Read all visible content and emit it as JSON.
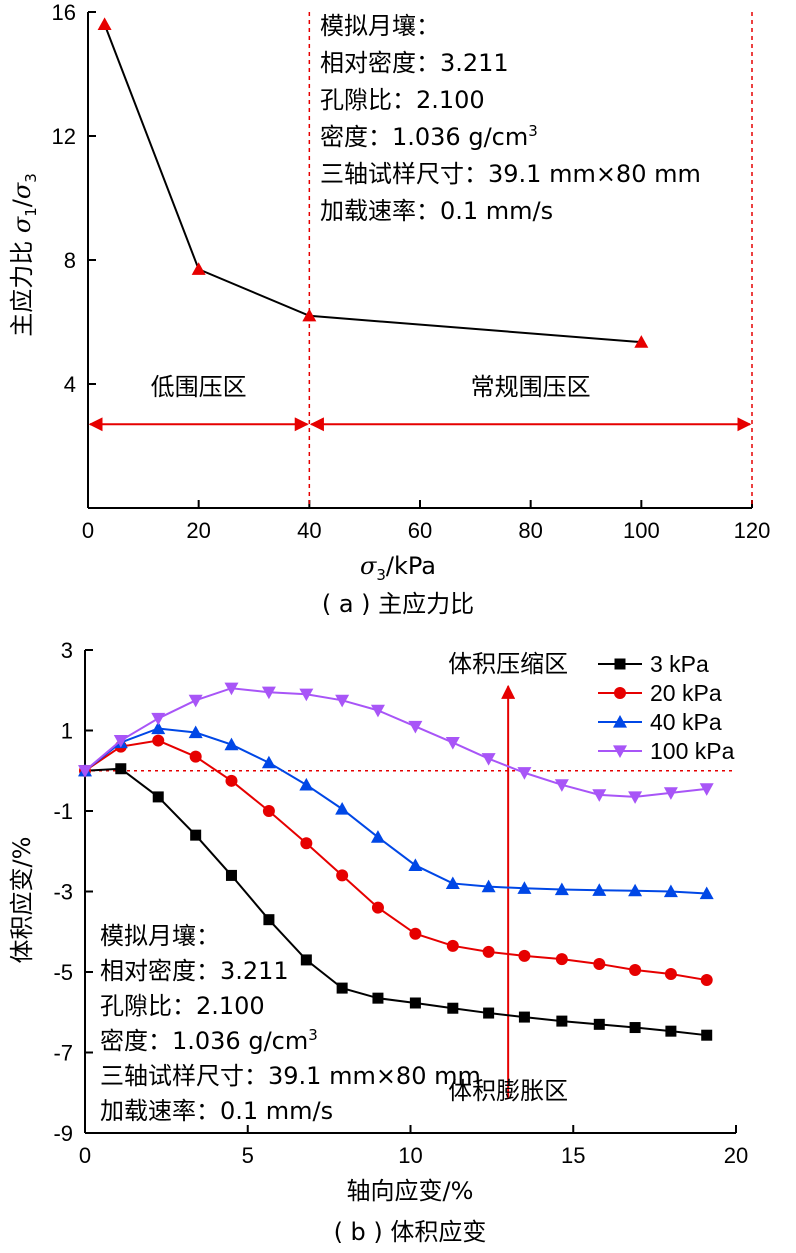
{
  "chart_data": [
    {
      "type": "line",
      "caption": "( a ) 主应力比",
      "xlabel": "σ3/kPa",
      "ylabel": "主应力比 σ1/σ3",
      "xlim": [
        0,
        120
      ],
      "ylim": [
        0,
        16
      ],
      "xticks": [
        0,
        20,
        40,
        60,
        80,
        100,
        120
      ],
      "yticks": [
        4,
        8,
        12,
        16
      ],
      "grid": false,
      "series": [
        {
          "x": [
            3,
            20,
            40,
            100
          ],
          "y": [
            15.6,
            7.7,
            6.2,
            5.35
          ],
          "color": "#e60000",
          "line_color": "#000000",
          "marker": "triangle-up"
        }
      ],
      "boundaries": [
        40,
        120
      ],
      "regions": [
        {
          "label": "低围压区",
          "from": 0,
          "to": 40
        },
        {
          "label": "常规围压区",
          "from": 40,
          "to": 120
        }
      ],
      "annotation_lines": [
        "模拟月壤：",
        "相对密度：3.211",
        "孔隙比：2.100",
        "密度：1.036 g/cm³",
        "三轴试样尺寸：39.1 mm×80  mm",
        "加载速率：0.1 mm/s"
      ]
    },
    {
      "type": "line",
      "caption": "( b ) 体积应变",
      "xlabel": "轴向应变/%",
      "ylabel": "体积应变/%",
      "xlim": [
        0,
        20
      ],
      "ylim": [
        -9,
        3
      ],
      "xticks": [
        0,
        5,
        10,
        15,
        20
      ],
      "yticks": [
        3,
        1,
        -1,
        -3,
        -5,
        -7,
        -9
      ],
      "grid": false,
      "reference_line_y": 0,
      "series": [
        {
          "name": "3 kPa",
          "color": "#000000",
          "marker": "square",
          "x": [
            0,
            1.1,
            2.25,
            3.4,
            4.5,
            5.65,
            6.8,
            7.9,
            9.0,
            10.15,
            11.3,
            12.4,
            13.5,
            14.65,
            15.8,
            16.9,
            18.0,
            19.1
          ],
          "y": [
            0,
            0.05,
            -0.65,
            -1.6,
            -2.6,
            -3.7,
            -4.7,
            -5.4,
            -5.65,
            -5.77,
            -5.9,
            -6.02,
            -6.12,
            -6.22,
            -6.3,
            -6.38,
            -6.47,
            -6.57
          ]
        },
        {
          "name": "20 kPa",
          "color": "#e60000",
          "marker": "circle",
          "x": [
            0,
            1.1,
            2.25,
            3.4,
            4.5,
            5.65,
            6.8,
            7.9,
            9.0,
            10.15,
            11.3,
            12.4,
            13.5,
            14.65,
            15.8,
            16.9,
            18.0,
            19.1
          ],
          "y": [
            0,
            0.6,
            0.75,
            0.35,
            -0.25,
            -1.0,
            -1.8,
            -2.6,
            -3.4,
            -4.05,
            -4.35,
            -4.5,
            -4.6,
            -4.68,
            -4.8,
            -4.95,
            -5.05,
            -5.2
          ]
        },
        {
          "name": "40 kPa",
          "color": "#0047e6",
          "marker": "triangle-up",
          "x": [
            0,
            1.1,
            2.25,
            3.4,
            4.5,
            5.65,
            6.8,
            7.9,
            9.0,
            10.15,
            11.3,
            12.4,
            13.5,
            14.65,
            15.8,
            16.9,
            18.0,
            19.1
          ],
          "y": [
            0,
            0.7,
            1.05,
            0.95,
            0.65,
            0.2,
            -0.35,
            -0.95,
            -1.65,
            -2.35,
            -2.8,
            -2.88,
            -2.92,
            -2.95,
            -2.97,
            -2.98,
            -3.0,
            -3.05
          ]
        },
        {
          "name": "100 kPa",
          "color": "#a855f7",
          "marker": "triangle-down",
          "x": [
            0,
            1.1,
            2.25,
            3.4,
            4.5,
            5.65,
            6.8,
            7.9,
            9.0,
            10.15,
            11.3,
            12.4,
            13.5,
            14.65,
            15.8,
            16.9,
            18.0,
            19.1
          ],
          "y": [
            0,
            0.75,
            1.3,
            1.75,
            2.05,
            1.95,
            1.9,
            1.75,
            1.5,
            1.1,
            0.7,
            0.3,
            -0.05,
            -0.35,
            -0.6,
            -0.65,
            -0.55,
            -0.45
          ]
        }
      ],
      "divider_x": 13.0,
      "region_labels": {
        "upper": "体积压缩区",
        "lower": "体积膨胀区"
      },
      "annotation_lines": [
        "模拟月壤：",
        "相对密度：3.211",
        "孔隙比：2.100",
        "密度：1.036 g/cm³",
        "三轴试样尺寸：39.1 mm×80  mm",
        "加载速率：0.1 mm/s"
      ]
    }
  ]
}
